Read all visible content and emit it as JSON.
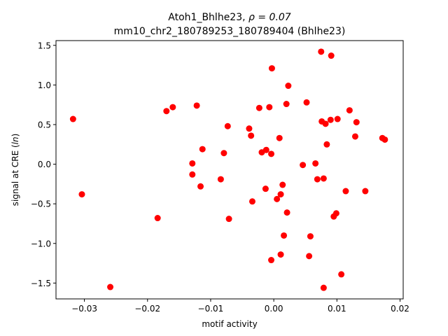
{
  "chart_data": {
    "type": "scatter",
    "title_line1_prefix": "Atoh1_Bhlhe23, ",
    "title_line1_rho": "ρ = 0.07",
    "title_line2": "mm10_chr2_180789253_180789404 (Bhlhe23)",
    "xlabel": "motif activity",
    "ylabel_prefix": "signal at CRE (",
    "ylabel_math": "ln",
    "ylabel_suffix": ")",
    "xlim": [
      -0.0345,
      0.0205
    ],
    "ylim": [
      -1.7,
      1.56
    ],
    "xticks": [
      {
        "value": -0.03,
        "label": "−0.03"
      },
      {
        "value": -0.02,
        "label": "−0.02"
      },
      {
        "value": -0.01,
        "label": "−0.01"
      },
      {
        "value": 0.0,
        "label": "0.00"
      },
      {
        "value": 0.01,
        "label": "0.01"
      },
      {
        "value": 0.02,
        "label": "0.02"
      }
    ],
    "yticks": [
      {
        "value": -1.5,
        "label": "−1.5"
      },
      {
        "value": -1.0,
        "label": "−1.0"
      },
      {
        "value": -0.5,
        "label": "−0.5"
      },
      {
        "value": 0.0,
        "label": "0.0"
      },
      {
        "value": 0.5,
        "label": "0.5"
      },
      {
        "value": 1.0,
        "label": "1.0"
      },
      {
        "value": 1.5,
        "label": "1.5"
      }
    ],
    "grid": false,
    "marker_color": "#ff0000",
    "points": [
      {
        "x": -0.0318,
        "y": 0.57
      },
      {
        "x": -0.0304,
        "y": -0.38
      },
      {
        "x": -0.0259,
        "y": -1.55
      },
      {
        "x": -0.0184,
        "y": -0.68
      },
      {
        "x": -0.017,
        "y": 0.67
      },
      {
        "x": -0.016,
        "y": 0.72
      },
      {
        "x": -0.0129,
        "y": 0.01
      },
      {
        "x": -0.0129,
        "y": -0.13
      },
      {
        "x": -0.0122,
        "y": 0.74
      },
      {
        "x": -0.0116,
        "y": -0.28
      },
      {
        "x": -0.0113,
        "y": 0.19
      },
      {
        "x": -0.0084,
        "y": -0.19
      },
      {
        "x": -0.0079,
        "y": 0.14
      },
      {
        "x": -0.0073,
        "y": 0.48
      },
      {
        "x": -0.0071,
        "y": -0.69
      },
      {
        "x": -0.0039,
        "y": 0.45
      },
      {
        "x": -0.0036,
        "y": 0.36
      },
      {
        "x": -0.0034,
        "y": -0.47
      },
      {
        "x": -0.0023,
        "y": 0.71
      },
      {
        "x": -0.0019,
        "y": 0.15
      },
      {
        "x": -0.0013,
        "y": -0.31
      },
      {
        "x": -0.0012,
        "y": 0.18
      },
      {
        "x": -0.0007,
        "y": 0.72
      },
      {
        "x": -0.0004,
        "y": 0.13
      },
      {
        "x": -0.0004,
        "y": -1.21
      },
      {
        "x": -0.0003,
        "y": 1.21
      },
      {
        "x": 0.0005,
        "y": -0.44
      },
      {
        "x": 0.0009,
        "y": 0.33
      },
      {
        "x": 0.0011,
        "y": -0.38
      },
      {
        "x": 0.0011,
        "y": -1.14
      },
      {
        "x": 0.0014,
        "y": -0.26
      },
      {
        "x": 0.0016,
        "y": -0.9
      },
      {
        "x": 0.002,
        "y": 0.76
      },
      {
        "x": 0.0021,
        "y": -0.61
      },
      {
        "x": 0.0023,
        "y": 0.99
      },
      {
        "x": 0.0046,
        "y": -0.01
      },
      {
        "x": 0.0052,
        "y": 0.78
      },
      {
        "x": 0.0056,
        "y": -1.16
      },
      {
        "x": 0.0058,
        "y": -0.91
      },
      {
        "x": 0.0066,
        "y": 0.01
      },
      {
        "x": 0.0069,
        "y": -0.19
      },
      {
        "x": 0.0075,
        "y": 1.42
      },
      {
        "x": 0.0076,
        "y": 0.54
      },
      {
        "x": 0.0079,
        "y": -0.18
      },
      {
        "x": 0.0079,
        "y": -1.56
      },
      {
        "x": 0.0082,
        "y": 0.51
      },
      {
        "x": 0.0084,
        "y": 0.25
      },
      {
        "x": 0.009,
        "y": 0.56
      },
      {
        "x": 0.0091,
        "y": 1.37
      },
      {
        "x": 0.0095,
        "y": -0.66
      },
      {
        "x": 0.0099,
        "y": -0.62
      },
      {
        "x": 0.0101,
        "y": 0.57
      },
      {
        "x": 0.0107,
        "y": -1.39
      },
      {
        "x": 0.0114,
        "y": -0.34
      },
      {
        "x": 0.012,
        "y": 0.68
      },
      {
        "x": 0.0129,
        "y": 0.35
      },
      {
        "x": 0.0131,
        "y": 0.53
      },
      {
        "x": 0.0145,
        "y": -0.34
      },
      {
        "x": 0.0172,
        "y": 0.33
      },
      {
        "x": 0.0176,
        "y": 0.31
      }
    ]
  }
}
